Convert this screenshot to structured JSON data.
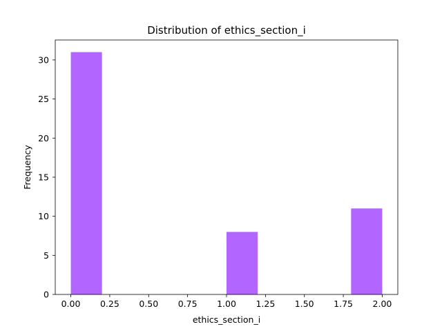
{
  "chart_data": {
    "type": "bar",
    "title": "Distribution of  ethics_section_i",
    "xlabel": "ethics_section_i",
    "ylabel": "Frequency",
    "xlim": [
      -0.1,
      2.1
    ],
    "ylim": [
      0,
      32.55
    ],
    "xticks": [
      "0.00",
      "0.25",
      "0.50",
      "0.75",
      "1.00",
      "1.25",
      "1.50",
      "1.75",
      "2.00"
    ],
    "xtick_values": [
      0,
      0.25,
      0.5,
      0.75,
      1.0,
      1.25,
      1.5,
      1.75,
      2.0
    ],
    "yticks": [
      "0",
      "5",
      "10",
      "15",
      "20",
      "25",
      "30"
    ],
    "ytick_values": [
      0,
      5,
      10,
      15,
      20,
      25,
      30
    ],
    "bins": [
      {
        "x0": 0.0,
        "x1": 0.2,
        "value": 31
      },
      {
        "x0": 0.2,
        "x1": 0.4,
        "value": 0
      },
      {
        "x0": 0.4,
        "x1": 0.6,
        "value": 0
      },
      {
        "x0": 0.6,
        "x1": 0.8,
        "value": 0
      },
      {
        "x0": 0.8,
        "x1": 1.0,
        "value": 0
      },
      {
        "x0": 1.0,
        "x1": 1.2,
        "value": 8
      },
      {
        "x0": 1.2,
        "x1": 1.4,
        "value": 0
      },
      {
        "x0": 1.4,
        "x1": 1.6,
        "value": 0
      },
      {
        "x0": 1.6,
        "x1": 1.8,
        "value": 0
      },
      {
        "x0": 1.8,
        "x1": 2.0,
        "value": 11
      }
    ],
    "bar_color": "#b266ff",
    "grid": false,
    "legend": "none"
  }
}
